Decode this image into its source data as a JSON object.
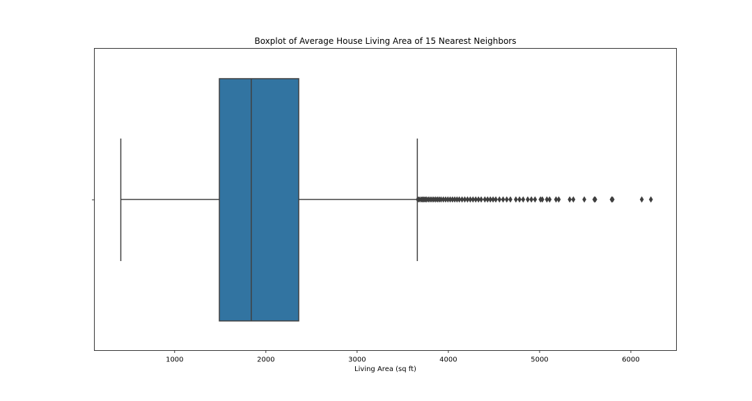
{
  "chart_data": {
    "type": "boxplot",
    "title": "Boxplot of Average House Living Area of 15 Nearest Neighbors",
    "xlabel": "Living Area (sq ft)",
    "ylabel": "",
    "xlim": [
      120,
      6500
    ],
    "x_ticks": [
      {
        "value": 1000,
        "label": "1000"
      },
      {
        "value": 2000,
        "label": "2000"
      },
      {
        "value": 3000,
        "label": "3000"
      },
      {
        "value": 4000,
        "label": "4000"
      },
      {
        "value": 5000,
        "label": "5000"
      },
      {
        "value": 6000,
        "label": "6000"
      }
    ],
    "grid": false,
    "box": {
      "whisker_low": 410,
      "q1": 1490,
      "median": 1840,
      "q3": 2360,
      "whisker_high": 3660,
      "color": "#3274a1",
      "edge_color": "#3f3f3f"
    },
    "outliers": [
      3665,
      3680,
      3700,
      3715,
      3730,
      3745,
      3760,
      3780,
      3800,
      3820,
      3840,
      3860,
      3880,
      3900,
      3920,
      3945,
      3970,
      3995,
      4020,
      4045,
      4070,
      4095,
      4120,
      4150,
      4180,
      4210,
      4240,
      4270,
      4300,
      4330,
      4360,
      4400,
      4430,
      4460,
      4490,
      4520,
      4560,
      4600,
      4640,
      4680,
      4740,
      4780,
      4820,
      4870,
      4910,
      4950,
      5010,
      5030,
      5080,
      5110,
      5180,
      5210,
      5330,
      5370,
      5490,
      5600,
      5610,
      5790,
      5800,
      6120,
      6220
    ]
  }
}
